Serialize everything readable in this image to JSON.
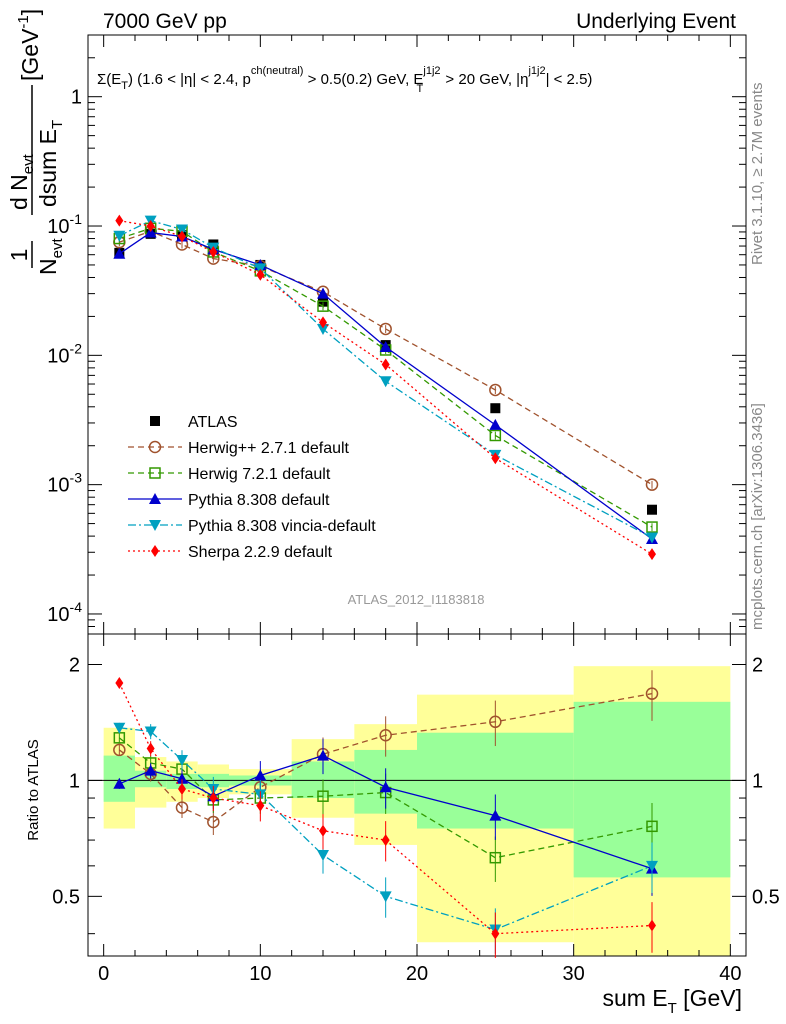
{
  "header": {
    "left": "7000 GeV pp",
    "right": "Underlying Event"
  },
  "side_text": {
    "top": "Rivet 3.1.10, ≥ 2.7M events",
    "bottom": "mcplots.cern.ch [arXiv:1306.3436]"
  },
  "watermark": "ATLAS_2012_I1183818",
  "chart_data": {
    "type": "line",
    "title": "Σ(E_T) (1.6 < |η| < 2.4, p^ch(neutral) > 0.5(0.2) GeV, E_T^j1j2 > 20 GeV, |η^j1j2| < 2.5)",
    "xlabel": "sum E_T [GeV]",
    "ylabel": "1/N_evt dN_evt/dsum E_T [GeV^-1]",
    "ratio_ylabel": "Ratio to ATLAS",
    "xlim": [
      -1,
      41
    ],
    "ylim": [
      7e-05,
      3
    ],
    "yscale": "log",
    "ratio_ylim": [
      0.35,
      2.4
    ],
    "x_ticks": [
      "0",
      "10",
      "20",
      "30",
      "40"
    ],
    "y_ticks": [
      "10^-4",
      "10^-3",
      "10^-2",
      "10^-1",
      "1"
    ],
    "ratio_ticks": [
      "0.5",
      "1",
      "2"
    ],
    "bin_edges": [
      0,
      2,
      4,
      6,
      8,
      12,
      16,
      20,
      30,
      40
    ],
    "band_inner": [
      [
        0.88,
        1.16
      ],
      [
        0.96,
        1.06
      ],
      [
        0.95,
        1.04
      ],
      [
        0.96,
        1.04
      ],
      [
        0.97,
        1.03
      ],
      [
        0.9,
        1.12
      ],
      [
        0.82,
        1.2
      ],
      [
        0.75,
        1.33
      ],
      [
        0.56,
        1.6
      ]
    ],
    "band_outer": [
      [
        0.75,
        1.37
      ],
      [
        0.85,
        1.15
      ],
      [
        0.88,
        1.12
      ],
      [
        0.9,
        1.1
      ],
      [
        0.92,
        1.07
      ],
      [
        0.8,
        1.28
      ],
      [
        0.68,
        1.4
      ],
      [
        0.38,
        1.67
      ],
      [
        0.35,
        1.98
      ]
    ],
    "x": [
      1,
      3,
      5,
      7,
      10,
      14,
      18,
      25,
      35
    ],
    "series": [
      {
        "name": "ATLAS",
        "color": "#000000",
        "marker": "square-filled",
        "line": "none",
        "values": [
          0.062,
          0.087,
          0.085,
          0.072,
          0.05,
          0.026,
          0.012,
          0.0039,
          0.00064
        ]
      },
      {
        "name": "Herwig++ 2.7.1 default",
        "color": "#a0522d",
        "marker": "circle-open",
        "line": "dashed",
        "values": [
          0.075,
          0.091,
          0.072,
          0.056,
          0.049,
          0.031,
          0.016,
          0.0054,
          0.001
        ],
        "ratio": [
          1.2,
          1.04,
          0.85,
          0.78,
          0.96,
          1.17,
          1.31,
          1.42,
          1.68
        ]
      },
      {
        "name": "Herwig 7.2.1 default",
        "color": "#339900",
        "marker": "square-open",
        "line": "dashed",
        "values": [
          0.08,
          0.096,
          0.091,
          0.063,
          0.045,
          0.024,
          0.011,
          0.0024,
          0.00047
        ],
        "ratio": [
          1.29,
          1.11,
          1.07,
          0.89,
          0.9,
          0.91,
          0.93,
          0.63,
          0.76
        ]
      },
      {
        "name": "Pythia 8.308 default",
        "color": "#0000cc",
        "marker": "triangle-up",
        "line": "solid",
        "values": [
          0.061,
          0.089,
          0.083,
          0.066,
          0.05,
          0.03,
          0.0116,
          0.0029,
          0.00038
        ],
        "ratio": [
          0.98,
          1.06,
          1.01,
          0.91,
          1.03,
          1.16,
          0.96,
          0.81,
          0.59
        ]
      },
      {
        "name": "Pythia 8.308 vincia-default",
        "color": "#00a0c0",
        "marker": "triangle-down",
        "line": "dashdot",
        "values": [
          0.084,
          0.11,
          0.094,
          0.068,
          0.047,
          0.016,
          0.0063,
          0.0017,
          0.00039
        ],
        "ratio": [
          1.37,
          1.34,
          1.13,
          0.95,
          0.92,
          0.64,
          0.5,
          0.41,
          0.6
        ]
      },
      {
        "name": "Sherpa 2.2.9 default",
        "color": "#ff0000",
        "marker": "diamond",
        "line": "dotted",
        "values": [
          0.11,
          0.1,
          0.083,
          0.063,
          0.042,
          0.018,
          0.0085,
          0.0016,
          0.00029
        ],
        "ratio": [
          1.79,
          1.21,
          0.95,
          0.9,
          0.86,
          0.74,
          0.7,
          0.4,
          0.42
        ]
      }
    ]
  }
}
